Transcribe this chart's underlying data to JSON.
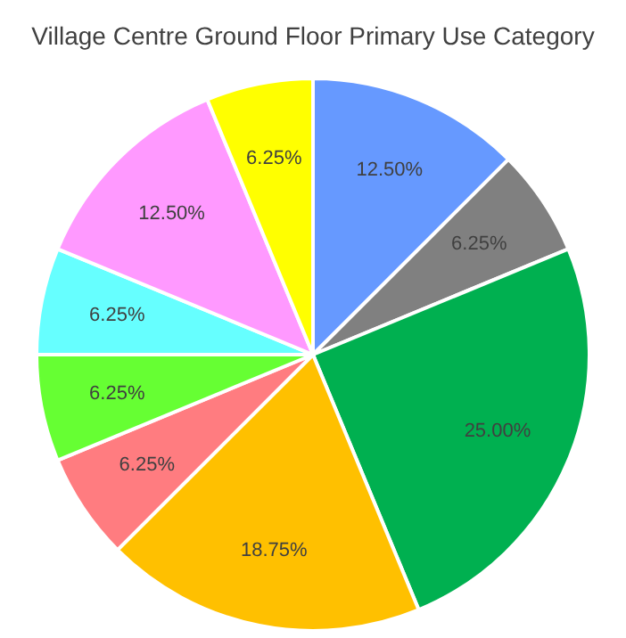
{
  "chart_data": {
    "type": "pie",
    "title": "Village Centre Ground Floor Primary Use Category",
    "categories": [
      null,
      null,
      null,
      null,
      null,
      null,
      null,
      null,
      null
    ],
    "values": [
      12.5,
      6.25,
      25,
      18.75,
      6.25,
      6.25,
      6.25,
      12.5,
      6.25
    ],
    "colors": [
      "#6699ff",
      "#808080",
      "#00b050",
      "#ffc000",
      "#ff7c80",
      "#66ff33",
      "#66ffff",
      "#ff99ff",
      "#ffff00"
    ],
    "value_labels": [
      "12.50%",
      "6.25%",
      "25.00%",
      "18.75%",
      "6.25%",
      "6.25%",
      "6.25%",
      "12.50%",
      "6.25%"
    ],
    "legend": false
  }
}
